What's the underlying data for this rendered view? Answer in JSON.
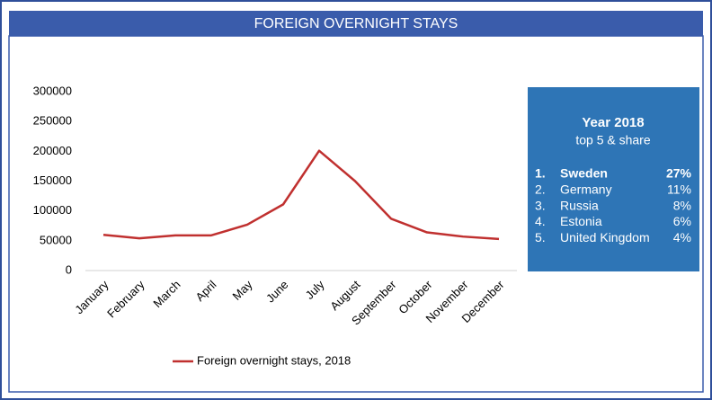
{
  "chart_data": {
    "type": "line",
    "title": "FOREIGN OVERNIGHT STAYS",
    "categories": [
      "January",
      "February",
      "March",
      "April",
      "May",
      "June",
      "July",
      "August",
      "September",
      "October",
      "November",
      "December"
    ],
    "series": [
      {
        "name": "Foreign overnight stays, 2018",
        "color": "#c0302f",
        "values": [
          60000,
          54000,
          59000,
          59000,
          77000,
          111000,
          201000,
          150000,
          87000,
          64000,
          57000,
          53000
        ]
      }
    ],
    "ylim": [
      0,
      300000
    ],
    "yticks": [
      0,
      50000,
      100000,
      150000,
      200000,
      250000,
      300000
    ],
    "grid": false,
    "legend": "bottom"
  },
  "panel": {
    "title": "Year 2018",
    "subtitle": "top 5 & share",
    "items": [
      {
        "rank": "1.",
        "name": "Sweden",
        "share": "27%"
      },
      {
        "rank": "2.",
        "name": "Germany",
        "share": "11%"
      },
      {
        "rank": "3.",
        "name": "Russia",
        "share": "8%"
      },
      {
        "rank": "4.",
        "name": "Estonia",
        "share": "6%"
      },
      {
        "rank": "5.",
        "name": "United Kingdom",
        "share": "4%"
      }
    ]
  }
}
